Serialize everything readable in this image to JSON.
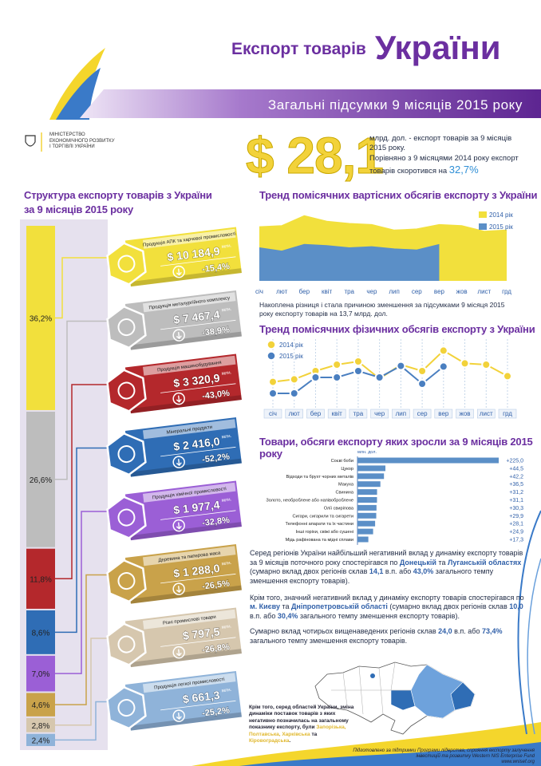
{
  "header": {
    "title_a": "Експорт товарів",
    "title_b": "України",
    "subtitle": "Загальні підсумки 9 місяців 2015 року"
  },
  "ministry": [
    "МІНІСТЕРСТВО",
    "ЕКОНОМІЧНОГО РОЗВИТКУ",
    "І ТОРГІВЛІ УКРАЇНИ"
  ],
  "summary": {
    "amount": "$ 28,1",
    "text1": "млрд. дол. - експорт товарів за 9 місяців 2015 року.",
    "text2": "Порівняно з 9 місяцями 2014 року експорт товарів скоротився на",
    "pct": "32,7%"
  },
  "structure": {
    "title_lines": [
      "Структура експорту товарів з України",
      "за 9 місяців 2015 року"
    ],
    "unit": "млн.",
    "items": [
      {
        "share": 36.2,
        "share_label": "36,2%",
        "name": "Продукція АПК та харчової промисловості",
        "amount": "$ 10 184,9",
        "change": "-15,4%",
        "color": "#f2e03c"
      },
      {
        "share": 26.6,
        "share_label": "26,6%",
        "name": "Продукція металургійного комплексу",
        "amount": "$ 7 467,4",
        "change": "-38,9%",
        "color": "#bdbdbd"
      },
      {
        "share": 11.8,
        "share_label": "11,8%",
        "name": "Продукція машинобудування",
        "amount": "$ 3 320,9",
        "change": "-43,0%",
        "color": "#b4282c"
      },
      {
        "share": 8.6,
        "share_label": "8,6%",
        "name": "Мінеральні продукти",
        "amount": "$ 2 416,0",
        "change": "-52,2%",
        "color": "#2f6db5"
      },
      {
        "share": 7.0,
        "share_label": "7,0%",
        "name": "Продукція хімічної промисловості",
        "amount": "$ 1 977,4",
        "change": "-32,8%",
        "color": "#9b5fd6"
      },
      {
        "share": 4.6,
        "share_label": "4,6%",
        "name": "Деревина та паперова маса",
        "amount": "$ 1 288,0",
        "change": "-26,5%",
        "color": "#c9a24a"
      },
      {
        "share": 2.8,
        "share_label": "2,8%",
        "name": "Різні промислові товари",
        "amount": "$ 797,5",
        "change": "-26,8%",
        "color": "#d6c7ae"
      },
      {
        "share": 2.4,
        "share_label": "2,4%",
        "name": "Продукція легкої промисловості",
        "amount": "$ 661,3",
        "change": "-25,2%",
        "color": "#8fb3d9"
      }
    ]
  },
  "trend_value": {
    "type": "area",
    "title": "Тренд помісячних вартісних обсягів експорту з України",
    "categories": [
      "січ",
      "лют",
      "бер",
      "квіт",
      "тра",
      "чер",
      "лип",
      "сер",
      "вер",
      "жов",
      "лист",
      "грд"
    ],
    "ylim": [
      0,
      6.5
    ],
    "series": [
      {
        "name": "2014 рік",
        "color": "#f2e03c",
        "values": [
          4.9,
          5.0,
          5.9,
          5.4,
          5.2,
          5.1,
          4.6,
          4.7,
          5.1,
          5.0,
          4.5,
          4.6
        ]
      },
      {
        "name": "2015 рік",
        "color": "#5b8fc7",
        "values": [
          3.0,
          2.7,
          3.3,
          3.2,
          3.0,
          3.1,
          2.9,
          2.8,
          3.3,
          null,
          null,
          null
        ]
      }
    ],
    "note": "Накоплена різниця і стала причиною зменшення за підсумками 9 місяця 2015 року експорту товарів на 13,7 млрд. дол."
  },
  "trend_volume": {
    "type": "line",
    "title": "Тренд помісячних фізичних обсягів експорту з України",
    "categories": [
      "січ",
      "лют",
      "бер",
      "квіт",
      "тра",
      "чер",
      "лип",
      "сер",
      "вер",
      "жов",
      "лист",
      "грд"
    ],
    "ylim": [
      0,
      100
    ],
    "series": [
      {
        "name": "2014 рік",
        "color": "#f2d23a",
        "values": [
          33,
          37,
          50,
          60,
          65,
          38,
          60,
          50,
          82,
          62,
          60,
          42
        ]
      },
      {
        "name": "2015 рік",
        "color": "#4a7fc0",
        "values": [
          15,
          15,
          40,
          40,
          50,
          40,
          58,
          30,
          57,
          null,
          null,
          null
        ]
      }
    ]
  },
  "growth": {
    "type": "hbar",
    "title": "Товари, обсяги експорту яких зросли за 9 місяців 2015 року",
    "unit": "млн. дол.",
    "color": "#5b8fc7",
    "xlim": [
      0,
      225
    ],
    "categories": [
      "Соєві боби",
      "Цукор",
      "Відходи та брухт чорних металів",
      "Макуха",
      "Свинина",
      "Золото, необроблене або напівоброблене",
      "Олії свиріпова",
      "Сигари, сигарили та сигарети",
      "Телефонні апарати та їх частини",
      "Інші горіхи, свіжі або сушені",
      "Мідь рафінована та мідні сплави"
    ],
    "values": [
      225.0,
      44.5,
      42.2,
      36.5,
      31.2,
      31.1,
      30.3,
      29.9,
      28.1,
      24.9,
      17.3
    ],
    "value_labels": [
      "+225,0",
      "+44,5",
      "+42,2",
      "+36,5",
      "+31,2",
      "+31,1",
      "+30,3",
      "+29,9",
      "+28,1",
      "+24,9",
      "+17,3"
    ]
  },
  "regions": {
    "paragraphs": [
      [
        "Серед регіонів України найбільший негативний вклад у динаміку експорту товарів за 9 місяців поточного року спостерігався по ",
        "Донецькій",
        " та ",
        "Луганській областях",
        " (сумарно вклад двох регіонів склав ",
        "14,1",
        " в.п. або ",
        "43,0%",
        " загального темпу зменшення експорту товарів)."
      ],
      [
        "Крім того, значний негативний вклад у динаміку експорту товарів спостерігався по ",
        "м. Києву",
        " та ",
        "Дніпропетровській області",
        " (сумарно вклад двох регіонів склав ",
        "10,0",
        " в.п. або ",
        "30,4%",
        " загального темпу зменшення експорту товарів)."
      ],
      [
        "Сумарно вклад чотирьох вищенаведених регіонів склав ",
        "24,0",
        " в.п. або ",
        "73,4%",
        " загального темпу зменшення експорту товарів."
      ]
    ],
    "map_caption": [
      "Крім того, серед областей України, зміна динаміки поставок товарів з яких негативно позначилась на загальному показнику експорту, були ",
      "Запорізька, Полтавська, Харківська",
      " та ",
      "Кіровоградська",
      "."
    ]
  },
  "footer": {
    "text": "Підготовлено за підтримки Програми лідерства, сприяння експорту залучення інвестицій та розвитку Western NIS Enterprise Fund",
    "url": "www.wnisef.org"
  }
}
